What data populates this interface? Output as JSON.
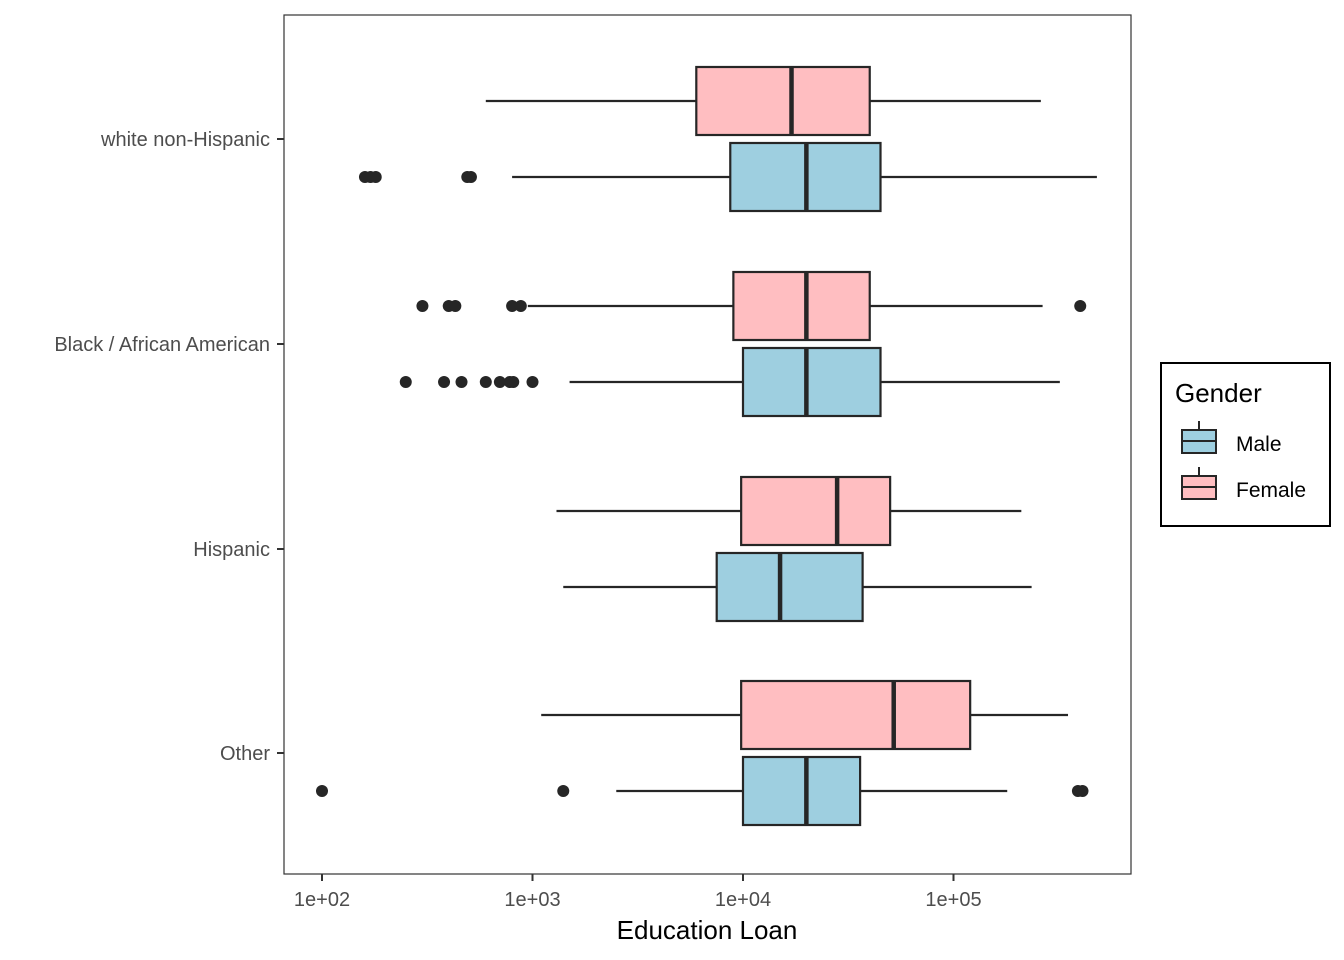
{
  "chart_data": {
    "type": "boxplot",
    "orientation": "horizontal",
    "xlabel": "Education Loan",
    "ylabel": "",
    "x_scale": "log10",
    "xlim": [
      84,
      550000
    ],
    "x_ticks": [
      100,
      1000,
      10000,
      100000
    ],
    "x_tick_labels": [
      "1e+02",
      "1e+03",
      "1e+04",
      "1e+05"
    ],
    "categories": [
      "white non-Hispanic",
      "Black / African American",
      "Hispanic",
      "Other"
    ],
    "grid": false,
    "legend": {
      "title": "Gender",
      "position": "right",
      "entries": [
        {
          "name": "Male",
          "color": "#9ECFE0"
        },
        {
          "name": "Female",
          "color": "#FFBEC1"
        }
      ]
    },
    "series": [
      {
        "name": "Female",
        "color": "#FFBEC1",
        "boxes": [
          {
            "category": "white non-Hispanic",
            "whisker_low": 600,
            "q1": 6000,
            "median": 17000,
            "q3": 40000,
            "whisker_high": 260000,
            "outliers": []
          },
          {
            "category": "Black / African American",
            "whisker_low": 950,
            "q1": 9000,
            "median": 20000,
            "q3": 40000,
            "whisker_high": 265000,
            "outliers": [
              300,
              400,
              430,
              800,
              880,
              400000
            ]
          },
          {
            "category": "Hispanic",
            "whisker_low": 1300,
            "q1": 9800,
            "median": 28000,
            "q3": 50000,
            "whisker_high": 210000,
            "outliers": []
          },
          {
            "category": "Other",
            "whisker_low": 1100,
            "q1": 9800,
            "median": 52000,
            "q3": 120000,
            "whisker_high": 350000,
            "outliers": []
          }
        ]
      },
      {
        "name": "Male",
        "color": "#9ECFE0",
        "boxes": [
          {
            "category": "white non-Hispanic",
            "whisker_low": 800,
            "q1": 8700,
            "median": 20000,
            "q3": 45000,
            "whisker_high": 480000,
            "outliers": [
              160,
              170,
              180,
              490,
              510
            ]
          },
          {
            "category": "Black / African American",
            "whisker_low": 1500,
            "q1": 10000,
            "median": 20000,
            "q3": 45000,
            "whisker_high": 320000,
            "outliers": [
              250,
              380,
              460,
              600,
              700,
              780,
              810,
              1000
            ]
          },
          {
            "category": "Hispanic",
            "whisker_low": 1400,
            "q1": 7500,
            "median": 15000,
            "q3": 37000,
            "whisker_high": 235000,
            "outliers": []
          },
          {
            "category": "Other",
            "whisker_low": 2500,
            "q1": 10000,
            "median": 20000,
            "q3": 36000,
            "whisker_high": 180000,
            "outliers": [
              100,
              1400,
              390000,
              410000
            ]
          }
        ]
      }
    ]
  }
}
